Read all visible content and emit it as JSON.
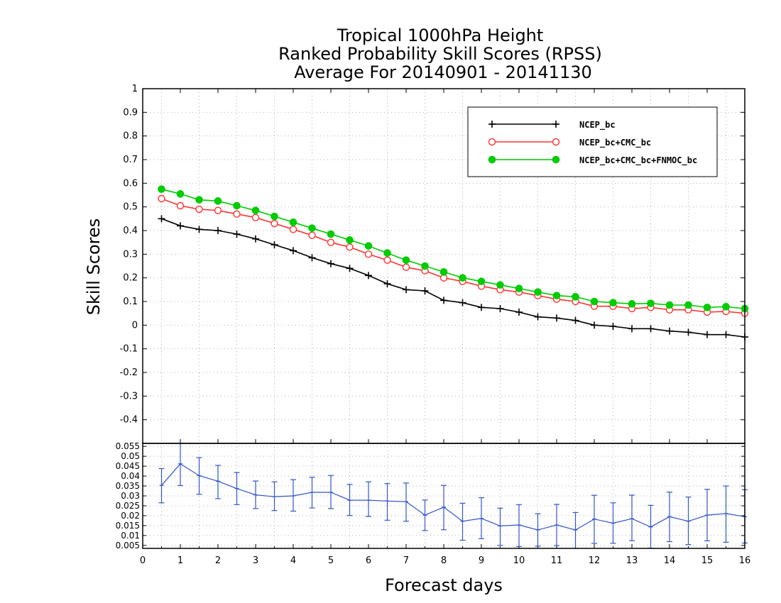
{
  "chart_data": [
    {
      "type": "line",
      "title": [
        "Tropical 1000hPa Height",
        "Ranked Probability Skill Scores (RPSS)",
        "Average For 20140901 - 20141130"
      ],
      "xlabel": "Forecast days",
      "ylabel": "Skill Scores",
      "xlim": [
        0,
        16
      ],
      "ylim": [
        -0.5,
        1
      ],
      "grid": true,
      "legend_position": "top-right",
      "yticks": [
        "-0.4",
        "-0.3",
        "-0.2",
        "-0.1",
        "0",
        "0.1",
        "0.2",
        "0.3",
        "0.4",
        "0.5",
        "0.6",
        "0.7",
        "0.8",
        "0.9",
        "1"
      ],
      "xticks": [
        "0",
        "1",
        "2",
        "3",
        "4",
        "5",
        "6",
        "7",
        "8",
        "9",
        "10",
        "11",
        "12",
        "13",
        "14",
        "15",
        "16"
      ],
      "x": [
        0.5,
        1,
        1.5,
        2,
        2.5,
        3,
        3.5,
        4,
        4.5,
        5,
        5.5,
        6,
        6.5,
        7,
        7.5,
        8,
        8.5,
        9,
        9.5,
        10,
        10.5,
        11,
        11.5,
        12,
        12.5,
        13,
        13.5,
        14,
        14.5,
        15,
        15.5,
        16
      ],
      "series": [
        {
          "name": "NCEP_bc",
          "color": "#000000",
          "marker": "plus",
          "values": [
            0.45,
            0.42,
            0.405,
            0.4,
            0.385,
            0.365,
            0.34,
            0.315,
            0.285,
            0.26,
            0.24,
            0.21,
            0.175,
            0.15,
            0.145,
            0.105,
            0.095,
            0.075,
            0.07,
            0.055,
            0.035,
            0.03,
            0.02,
            0.0,
            -0.005,
            -0.015,
            -0.015,
            -0.025,
            -0.03,
            -0.04,
            -0.04,
            -0.05
          ]
        },
        {
          "name": "NCEP_bc+CMC_bc",
          "color": "#ff3333",
          "marker": "open-circle",
          "values": [
            0.535,
            0.505,
            0.49,
            0.485,
            0.47,
            0.455,
            0.43,
            0.405,
            0.38,
            0.35,
            0.33,
            0.3,
            0.275,
            0.245,
            0.23,
            0.2,
            0.185,
            0.165,
            0.15,
            0.14,
            0.125,
            0.11,
            0.1,
            0.08,
            0.08,
            0.07,
            0.075,
            0.065,
            0.065,
            0.055,
            0.058,
            0.05
          ]
        },
        {
          "name": "NCEP_bc+CMC_bc+FNMOC_bc",
          "color": "#00cc00",
          "marker": "filled-circle",
          "values": [
            0.575,
            0.555,
            0.53,
            0.525,
            0.505,
            0.485,
            0.46,
            0.435,
            0.41,
            0.385,
            0.36,
            0.335,
            0.305,
            0.275,
            0.25,
            0.225,
            0.2,
            0.185,
            0.17,
            0.155,
            0.14,
            0.125,
            0.12,
            0.1,
            0.095,
            0.09,
            0.092,
            0.085,
            0.085,
            0.075,
            0.078,
            0.07
          ]
        }
      ]
    },
    {
      "type": "line",
      "xlim": [
        0,
        16
      ],
      "ylim": [
        0.0035,
        0.0565
      ],
      "grid": true,
      "yticks": [
        "0.005",
        "0.01",
        "0.015",
        "0.02",
        "0.025",
        "0.03",
        "0.035",
        "0.04",
        "0.045",
        "0.05",
        "0.055"
      ],
      "x": [
        0.5,
        1,
        1.5,
        2,
        2.5,
        3,
        3.5,
        4,
        4.5,
        5,
        5.5,
        6,
        6.5,
        7,
        7.5,
        8,
        8.5,
        9,
        9.5,
        10,
        10.5,
        11,
        11.5,
        12,
        12.5,
        13,
        13.5,
        14,
        14.5,
        15,
        15.5,
        16
      ],
      "series": [
        {
          "color": "#3355cc",
          "values": [
            0.0353,
            0.0462,
            0.0402,
            0.0374,
            0.0337,
            0.0305,
            0.0296,
            0.03,
            0.0318,
            0.0318,
            0.0278,
            0.0278,
            0.0274,
            0.0271,
            0.0203,
            0.0243,
            0.0172,
            0.0186,
            0.0148,
            0.0153,
            0.0128,
            0.0153,
            0.0128,
            0.0183,
            0.0162,
            0.0185,
            0.0143,
            0.0195,
            0.0172,
            0.0203,
            0.0211,
            0.0195
          ],
          "error_low": [
            0.0265,
            0.0352,
            0.0308,
            0.0286,
            0.0256,
            0.0236,
            0.0226,
            0.0223,
            0.0239,
            0.0236,
            0.0201,
            0.0196,
            0.0177,
            0.0172,
            0.0125,
            0.0129,
            0.0076,
            0.0084,
            0.005,
            0.0044,
            0.0046,
            0.0049,
            0.0035,
            0.006,
            0.0061,
            0.0074,
            0.0036,
            0.0069,
            0.0054,
            0.0073,
            0.0066,
            0.0062
          ],
          "error_high": [
            0.0438,
            0.0577,
            0.0493,
            0.0454,
            0.0418,
            0.0375,
            0.0371,
            0.0382,
            0.0394,
            0.0403,
            0.0358,
            0.0371,
            0.0362,
            0.0365,
            0.0279,
            0.0353,
            0.0263,
            0.0291,
            0.0238,
            0.0256,
            0.021,
            0.0257,
            0.0216,
            0.0303,
            0.0265,
            0.0304,
            0.0252,
            0.0319,
            0.0294,
            0.0333,
            0.035,
            0.0331
          ]
        }
      ]
    }
  ]
}
